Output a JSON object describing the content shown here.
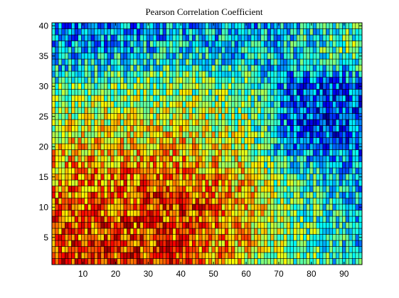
{
  "chart_data": {
    "type": "heatmap",
    "title": "Pearson Correlation Coefficient",
    "xlabel": "",
    "ylabel": "",
    "xlim": [
      0.5,
      95.5
    ],
    "ylim": [
      0.5,
      40.5
    ],
    "x_ticks": [
      10,
      20,
      30,
      40,
      50,
      60,
      70,
      80,
      90
    ],
    "y_ticks": [
      5,
      10,
      15,
      20,
      25,
      30,
      35,
      40
    ],
    "n_cols": 95,
    "n_rows": 40,
    "colormap": "jet",
    "grid": false,
    "cell_edges": true,
    "value_range": [
      0,
      1
    ],
    "row_profile": [
      {
        "row": 1,
        "mean": [
          0.82,
          0.83,
          0.82,
          0.62,
          0.5,
          0.42,
          0.35
        ]
      },
      {
        "row": 5,
        "mean": [
          0.8,
          0.82,
          0.8,
          0.66,
          0.52,
          0.42,
          0.36
        ]
      },
      {
        "row": 10,
        "mean": [
          0.78,
          0.8,
          0.84,
          0.68,
          0.48,
          0.4,
          0.34
        ]
      },
      {
        "row": 15,
        "mean": [
          0.72,
          0.75,
          0.76,
          0.66,
          0.42,
          0.36,
          0.32
        ]
      },
      {
        "row": 20,
        "mean": [
          0.64,
          0.66,
          0.68,
          0.56,
          0.28,
          0.22,
          0.24
        ]
      },
      {
        "row": 25,
        "mean": [
          0.56,
          0.58,
          0.58,
          0.52,
          0.22,
          0.16,
          0.2
        ]
      },
      {
        "row": 30,
        "mean": [
          0.46,
          0.48,
          0.5,
          0.46,
          0.26,
          0.18,
          0.24
        ]
      },
      {
        "row": 35,
        "mean": [
          0.3,
          0.34,
          0.38,
          0.34,
          0.36,
          0.42,
          0.48
        ]
      },
      {
        "row": 40,
        "mean": [
          0.22,
          0.26,
          0.3,
          0.3,
          0.34,
          0.42,
          0.46
        ]
      }
    ],
    "column_anchors": [
      1,
      20,
      40,
      60,
      74,
      85,
      95
    ]
  }
}
